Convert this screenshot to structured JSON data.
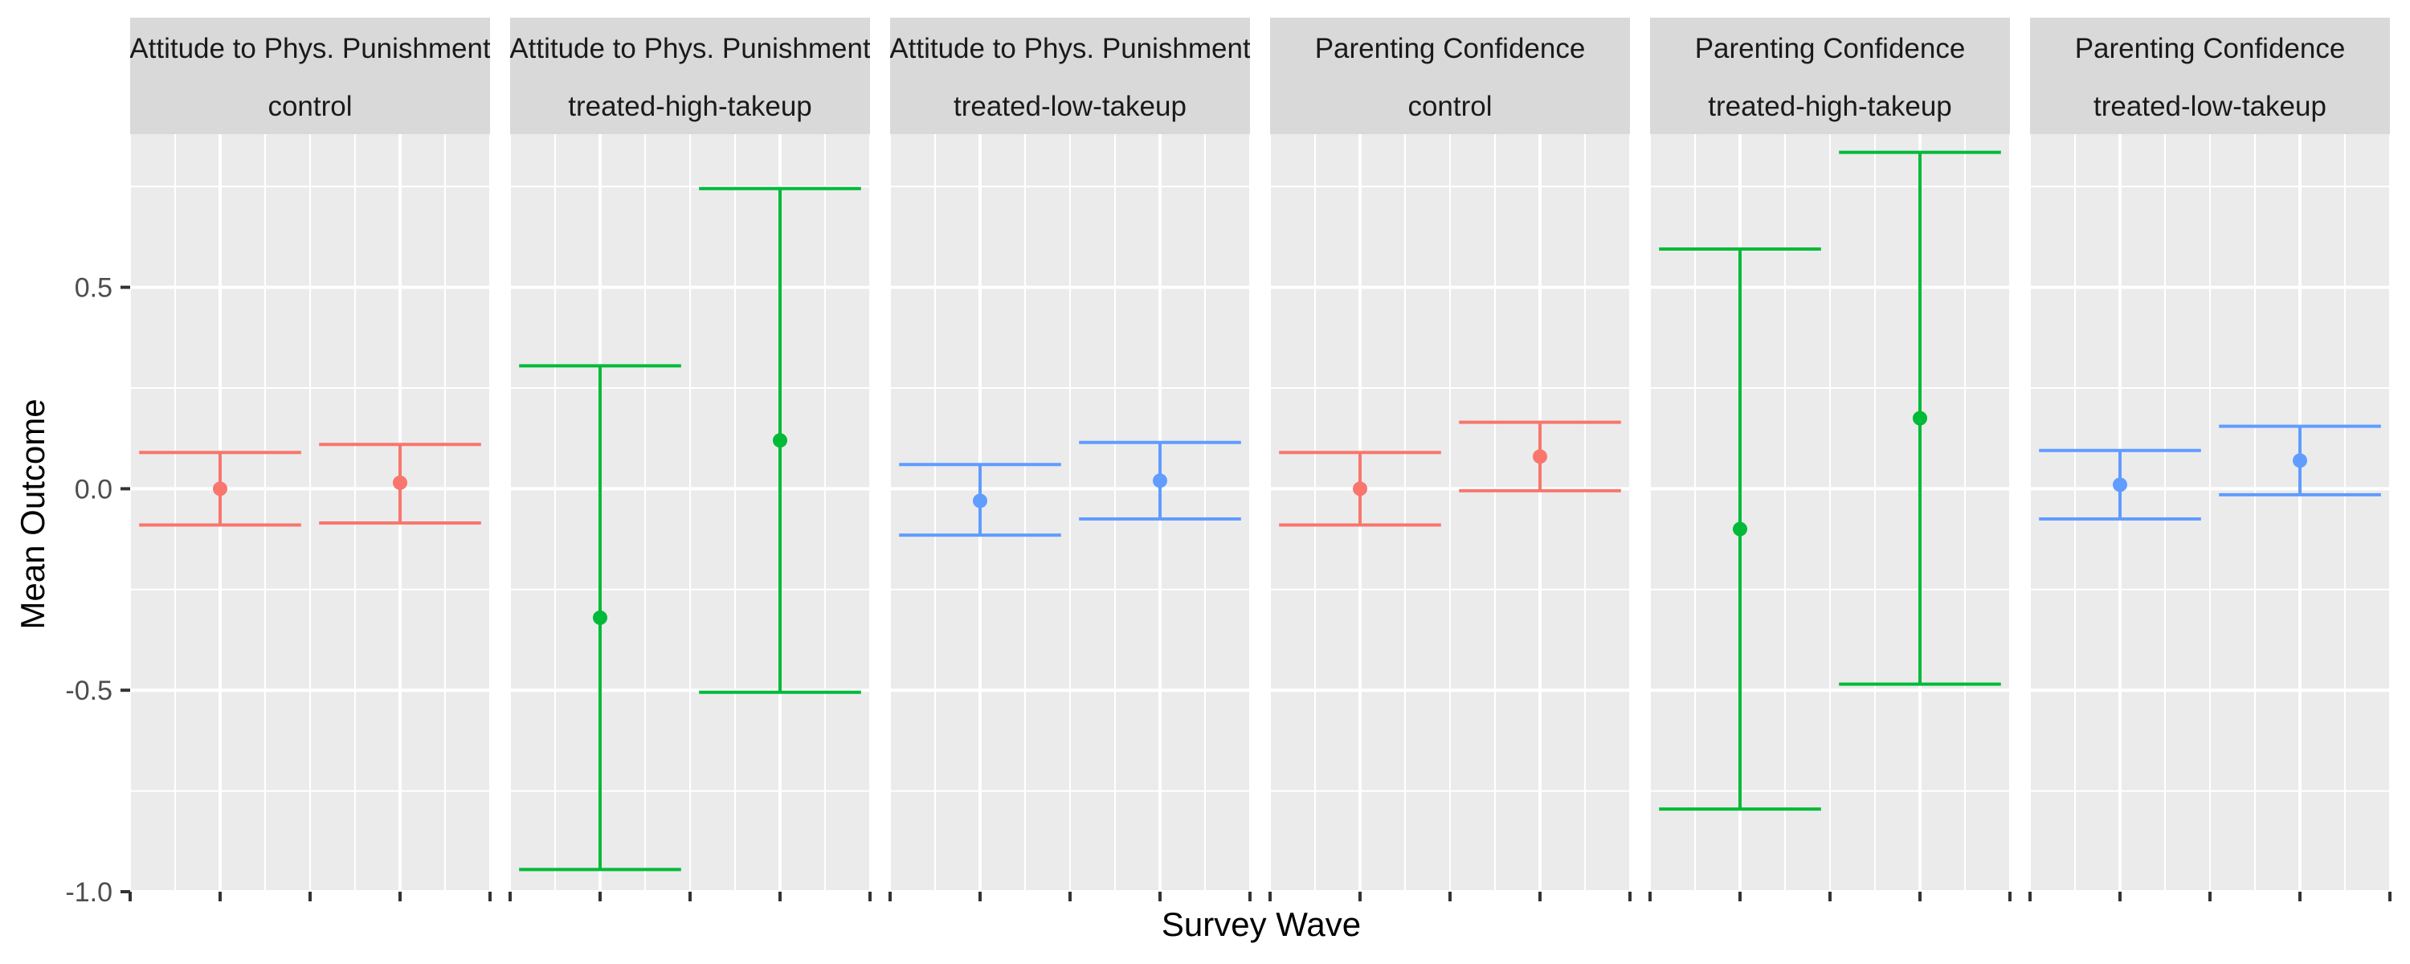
{
  "chart_data": {
    "type": "errorbar",
    "xlabel": "Survey Wave",
    "ylabel": "Mean Outcome",
    "ylim": [
      -1.0,
      0.88
    ],
    "y_ticks": [
      "-1.0",
      "-0.5",
      "0.0",
      "0.5"
    ],
    "y_tick_values": [
      -1.0,
      -0.5,
      0.0,
      0.5
    ],
    "x_tick_labels": [],
    "grid": true,
    "colors": {
      "control": "#F8766D",
      "treated-high-takeup": "#00BA38",
      "treated-low-takeup": "#619CFF",
      "panel_bg": "#EBEBEB",
      "strip_bg": "#D9D9D9",
      "grid": "#FFFFFF"
    },
    "panels": [
      {
        "outcome": "Attitude to Phys. Punishment",
        "group": "control",
        "points": [
          {
            "wave": 1,
            "mean": 0.0,
            "lower": -0.09,
            "upper": 0.09
          },
          {
            "wave": 2,
            "mean": 0.015,
            "lower": -0.085,
            "upper": 0.11
          }
        ]
      },
      {
        "outcome": "Attitude to Phys. Punishment",
        "group": "treated-high-takeup",
        "points": [
          {
            "wave": 1,
            "mean": -0.32,
            "lower": -0.945,
            "upper": 0.305
          },
          {
            "wave": 2,
            "mean": 0.12,
            "lower": -0.505,
            "upper": 0.745
          }
        ]
      },
      {
        "outcome": "Attitude to Phys. Punishment",
        "group": "treated-low-takeup",
        "points": [
          {
            "wave": 1,
            "mean": -0.03,
            "lower": -0.115,
            "upper": 0.06
          },
          {
            "wave": 2,
            "mean": 0.02,
            "lower": -0.075,
            "upper": 0.115
          }
        ]
      },
      {
        "outcome": "Parenting Confidence",
        "group": "control",
        "points": [
          {
            "wave": 1,
            "mean": 0.0,
            "lower": -0.09,
            "upper": 0.09
          },
          {
            "wave": 2,
            "mean": 0.08,
            "lower": -0.005,
            "upper": 0.165
          }
        ]
      },
      {
        "outcome": "Parenting Confidence",
        "group": "treated-high-takeup",
        "points": [
          {
            "wave": 1,
            "mean": -0.1,
            "lower": -0.795,
            "upper": 0.595
          },
          {
            "wave": 2,
            "mean": 0.175,
            "lower": -0.485,
            "upper": 0.835
          }
        ]
      },
      {
        "outcome": "Parenting Confidence",
        "group": "treated-low-takeup",
        "points": [
          {
            "wave": 1,
            "mean": 0.01,
            "lower": -0.075,
            "upper": 0.095
          },
          {
            "wave": 2,
            "mean": 0.07,
            "lower": -0.015,
            "upper": 0.155
          }
        ]
      }
    ]
  }
}
